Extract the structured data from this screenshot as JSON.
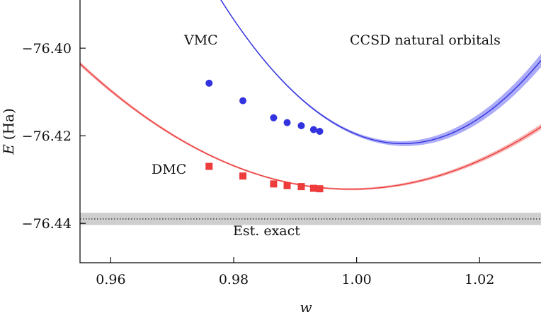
{
  "chart_data": {
    "type": "line",
    "title": "",
    "xlabel": "w",
    "ylabel": "E (Ha)",
    "ylabel_var": "E",
    "ylabel_unit": "(Ha)",
    "xlim": [
      0.955,
      1.03
    ],
    "ylim": [
      -76.449,
      -76.389
    ],
    "xticks": [
      0.96,
      0.98,
      1.0,
      1.02
    ],
    "xtick_labels": [
      "0.96",
      "0.98",
      "1.00",
      "1.02"
    ],
    "yticks": [
      -76.4,
      -76.42,
      -76.44
    ],
    "ytick_labels": [
      "−76.40",
      "−76.42",
      "−76.44"
    ],
    "annotations": {
      "vmc": "VMC",
      "dmc": "DMC",
      "orbitals": "CCSD natural orbitals",
      "exact": "Est. exact"
    },
    "estimated_exact": {
      "value": -76.439,
      "band": [
        -76.4404,
        -76.4376
      ]
    },
    "series": [
      {
        "name": "VMC",
        "color": "#3232e0",
        "band_color": "#8b8bf5",
        "marker": "circle",
        "fit": {
          "vertex_w": 1.0075,
          "vertex_E": -76.4218,
          "curvature": 37.5
        },
        "band_halfwidth": {
          "min": 0.0002,
          "slope": 0.62,
          "center_w": 0.984
        },
        "points": [
          {
            "w": 0.976,
            "E": -76.408
          },
          {
            "w": 0.9815,
            "E": -76.412
          },
          {
            "w": 0.9865,
            "E": -76.4159
          },
          {
            "w": 0.9887,
            "E": -76.417
          },
          {
            "w": 0.991,
            "E": -76.4177
          },
          {
            "w": 0.993,
            "E": -76.4186
          },
          {
            "w": 0.994,
            "E": -76.419
          }
        ]
      },
      {
        "name": "DMC",
        "color": "#ee3b3b",
        "band_color": "#f49999",
        "marker": "square",
        "fit": {
          "vertex_w": 0.999,
          "vertex_E": -76.4322,
          "curvature": 14.8
        },
        "band_halfwidth": {
          "min": 0.0002,
          "slope": 0.25,
          "center_w": 0.988
        },
        "points": [
          {
            "w": 0.976,
            "E": -76.427
          },
          {
            "w": 0.9815,
            "E": -76.4292
          },
          {
            "w": 0.9865,
            "E": -76.431
          },
          {
            "w": 0.9887,
            "E": -76.4314
          },
          {
            "w": 0.991,
            "E": -76.4316
          },
          {
            "w": 0.993,
            "E": -76.432
          },
          {
            "w": 0.994,
            "E": -76.4321
          }
        ]
      }
    ]
  }
}
